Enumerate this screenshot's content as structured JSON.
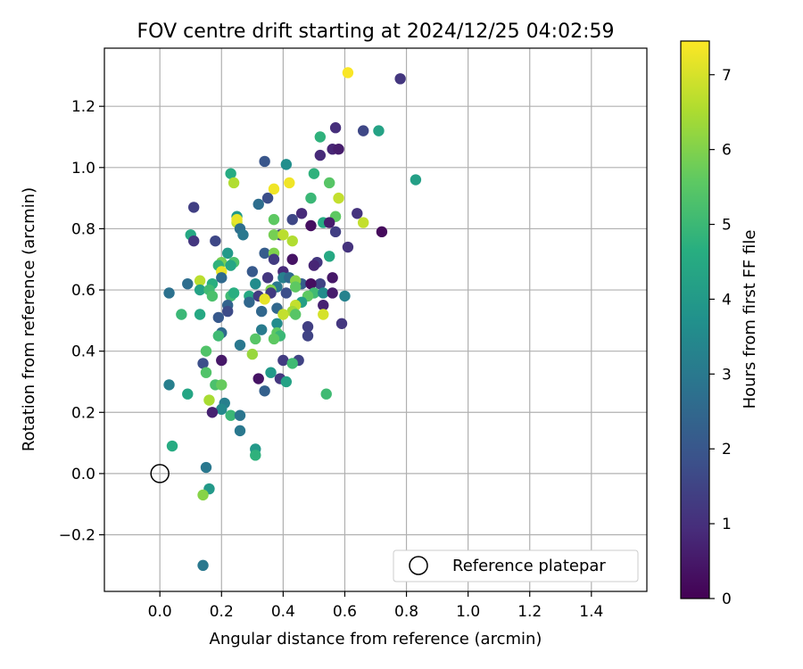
{
  "chart_data": {
    "type": "scatter",
    "title": "FOV centre drift starting at 2024/12/25 04:02:59",
    "xlabel": "Angular distance from reference (arcmin)",
    "ylabel": "Rotation from reference (arcmin)",
    "xlim": [
      -0.18,
      1.58
    ],
    "ylim": [
      -0.385,
      1.39
    ],
    "x_ticks": [
      0.0,
      0.2,
      0.4,
      0.6,
      0.8,
      1.0,
      1.2,
      1.4
    ],
    "y_ticks": [
      -0.2,
      0.0,
      0.2,
      0.4,
      0.6,
      0.8,
      1.0,
      1.2
    ],
    "x_tick_labels": [
      "0.0",
      "0.2",
      "0.4",
      "0.6",
      "0.8",
      "1.0",
      "1.2",
      "1.4"
    ],
    "y_tick_labels": [
      "−0.2",
      "0.0",
      "0.2",
      "0.4",
      "0.6",
      "0.8",
      "1.0",
      "1.2"
    ],
    "grid": true,
    "legend": {
      "position": "lower-right",
      "entries": [
        "Reference platepar"
      ]
    },
    "reference_point": {
      "x": 0.0,
      "y": 0.0,
      "label": "Reference platepar"
    },
    "colorbar": {
      "label": "Hours from first FF file",
      "min": 0,
      "max": 7.45,
      "ticks": [
        0,
        1,
        2,
        3,
        4,
        5,
        6,
        7
      ],
      "tick_labels": [
        "0",
        "1",
        "2",
        "3",
        "4",
        "5",
        "6",
        "7"
      ],
      "colormap": "viridis"
    },
    "points": [
      {
        "x": 0.61,
        "y": 1.31,
        "h": 7.4
      },
      {
        "x": 0.78,
        "y": 1.29,
        "h": 1.2
      },
      {
        "x": 0.71,
        "y": 1.12,
        "h": 4.3
      },
      {
        "x": 0.66,
        "y": 1.12,
        "h": 1.6
      },
      {
        "x": 0.57,
        "y": 1.13,
        "h": 1.0
      },
      {
        "x": 0.52,
        "y": 1.1,
        "h": 4.8
      },
      {
        "x": 0.56,
        "y": 1.06,
        "h": 0.8
      },
      {
        "x": 0.58,
        "y": 1.06,
        "h": 0.6
      },
      {
        "x": 0.52,
        "y": 1.04,
        "h": 0.9
      },
      {
        "x": 0.34,
        "y": 1.02,
        "h": 2.0
      },
      {
        "x": 0.41,
        "y": 1.01,
        "h": 3.7
      },
      {
        "x": 0.83,
        "y": 0.96,
        "h": 4.2
      },
      {
        "x": 0.23,
        "y": 0.98,
        "h": 4.6
      },
      {
        "x": 0.5,
        "y": 0.98,
        "h": 4.8
      },
      {
        "x": 0.55,
        "y": 0.95,
        "h": 5.5
      },
      {
        "x": 0.42,
        "y": 0.95,
        "h": 7.3
      },
      {
        "x": 0.24,
        "y": 0.95,
        "h": 6.6
      },
      {
        "x": 0.37,
        "y": 0.93,
        "h": 7.3
      },
      {
        "x": 0.35,
        "y": 0.9,
        "h": 1.8
      },
      {
        "x": 0.58,
        "y": 0.9,
        "h": 6.8
      },
      {
        "x": 0.49,
        "y": 0.9,
        "h": 5.0
      },
      {
        "x": 0.11,
        "y": 0.87,
        "h": 1.4
      },
      {
        "x": 0.32,
        "y": 0.88,
        "h": 2.7
      },
      {
        "x": 0.46,
        "y": 0.85,
        "h": 0.9
      },
      {
        "x": 0.64,
        "y": 0.85,
        "h": 1.1
      },
      {
        "x": 0.25,
        "y": 0.84,
        "h": 4.0
      },
      {
        "x": 0.57,
        "y": 0.84,
        "h": 5.6
      },
      {
        "x": 0.43,
        "y": 0.83,
        "h": 1.6
      },
      {
        "x": 0.37,
        "y": 0.83,
        "h": 5.6
      },
      {
        "x": 0.25,
        "y": 0.82,
        "h": 6.8
      },
      {
        "x": 0.53,
        "y": 0.82,
        "h": 4.6
      },
      {
        "x": 0.55,
        "y": 0.82,
        "h": 0.6
      },
      {
        "x": 0.66,
        "y": 0.82,
        "h": 6.8
      },
      {
        "x": 0.49,
        "y": 0.81,
        "h": 0.3
      },
      {
        "x": 0.25,
        "y": 0.83,
        "h": 7.2
      },
      {
        "x": 0.26,
        "y": 0.8,
        "h": 2.7
      },
      {
        "x": 0.27,
        "y": 0.78,
        "h": 3.0
      },
      {
        "x": 0.39,
        "y": 0.78,
        "h": 1.4
      },
      {
        "x": 0.57,
        "y": 0.79,
        "h": 1.4
      },
      {
        "x": 0.72,
        "y": 0.79,
        "h": 0.2
      },
      {
        "x": 0.37,
        "y": 0.78,
        "h": 5.9
      },
      {
        "x": 0.4,
        "y": 0.78,
        "h": 6.7
      },
      {
        "x": 0.1,
        "y": 0.78,
        "h": 4.5
      },
      {
        "x": 0.11,
        "y": 0.76,
        "h": 1.2
      },
      {
        "x": 0.18,
        "y": 0.76,
        "h": 1.6
      },
      {
        "x": 0.43,
        "y": 0.76,
        "h": 6.6
      },
      {
        "x": 0.61,
        "y": 0.74,
        "h": 1.1
      },
      {
        "x": 0.34,
        "y": 0.72,
        "h": 2.2
      },
      {
        "x": 0.22,
        "y": 0.72,
        "h": 4.0
      },
      {
        "x": 0.37,
        "y": 0.72,
        "h": 6.0
      },
      {
        "x": 0.55,
        "y": 0.71,
        "h": 4.5
      },
      {
        "x": 0.37,
        "y": 0.7,
        "h": 1.3
      },
      {
        "x": 0.43,
        "y": 0.7,
        "h": 0.4
      },
      {
        "x": 0.51,
        "y": 0.69,
        "h": 1.2
      },
      {
        "x": 0.24,
        "y": 0.69,
        "h": 5.3
      },
      {
        "x": 0.2,
        "y": 0.69,
        "h": 5.9
      },
      {
        "x": 0.5,
        "y": 0.68,
        "h": 0.8
      },
      {
        "x": 0.23,
        "y": 0.68,
        "h": 4.4
      },
      {
        "x": 0.19,
        "y": 0.68,
        "h": 4.8
      },
      {
        "x": 0.2,
        "y": 0.66,
        "h": 7.2
      },
      {
        "x": 0.4,
        "y": 0.66,
        "h": 0.9
      },
      {
        "x": 0.3,
        "y": 0.66,
        "h": 2.1
      },
      {
        "x": 0.2,
        "y": 0.64,
        "h": 2.6
      },
      {
        "x": 0.35,
        "y": 0.64,
        "h": 1.2
      },
      {
        "x": 0.56,
        "y": 0.64,
        "h": 0.5
      },
      {
        "x": 0.4,
        "y": 0.64,
        "h": 3.2
      },
      {
        "x": 0.42,
        "y": 0.64,
        "h": 2.6
      },
      {
        "x": 0.46,
        "y": 0.62,
        "h": 2.2
      },
      {
        "x": 0.52,
        "y": 0.62,
        "h": 1.5
      },
      {
        "x": 0.09,
        "y": 0.62,
        "h": 2.7
      },
      {
        "x": 0.13,
        "y": 0.63,
        "h": 6.7
      },
      {
        "x": 0.17,
        "y": 0.62,
        "h": 4.7
      },
      {
        "x": 0.31,
        "y": 0.62,
        "h": 3.6
      },
      {
        "x": 0.44,
        "y": 0.63,
        "h": 6.1
      },
      {
        "x": 0.49,
        "y": 0.62,
        "h": 0.3
      },
      {
        "x": 0.44,
        "y": 0.61,
        "h": 5.6
      },
      {
        "x": 0.38,
        "y": 0.61,
        "h": 3.0
      },
      {
        "x": 0.13,
        "y": 0.6,
        "h": 4.3
      },
      {
        "x": 0.16,
        "y": 0.6,
        "h": 5.1
      },
      {
        "x": 0.36,
        "y": 0.6,
        "h": 6.0
      },
      {
        "x": 0.41,
        "y": 0.59,
        "h": 1.8
      },
      {
        "x": 0.5,
        "y": 0.59,
        "h": 5.1
      },
      {
        "x": 0.53,
        "y": 0.59,
        "h": 3.6
      },
      {
        "x": 0.56,
        "y": 0.59,
        "h": 0.6
      },
      {
        "x": 0.6,
        "y": 0.58,
        "h": 3.3
      },
      {
        "x": 0.03,
        "y": 0.59,
        "h": 2.8
      },
      {
        "x": 0.23,
        "y": 0.58,
        "h": 5.1
      },
      {
        "x": 0.24,
        "y": 0.59,
        "h": 4.7
      },
      {
        "x": 0.29,
        "y": 0.58,
        "h": 4.5
      },
      {
        "x": 0.17,
        "y": 0.58,
        "h": 5.3
      },
      {
        "x": 0.32,
        "y": 0.58,
        "h": 1.3
      },
      {
        "x": 0.36,
        "y": 0.59,
        "h": 1.3
      },
      {
        "x": 0.48,
        "y": 0.58,
        "h": 5.6
      },
      {
        "x": 0.46,
        "y": 0.56,
        "h": 4.2
      },
      {
        "x": 0.22,
        "y": 0.55,
        "h": 2.4
      },
      {
        "x": 0.34,
        "y": 0.57,
        "h": 7.2
      },
      {
        "x": 0.29,
        "y": 0.56,
        "h": 2.5
      },
      {
        "x": 0.44,
        "y": 0.55,
        "h": 6.8
      },
      {
        "x": 0.53,
        "y": 0.55,
        "h": 0.7
      },
      {
        "x": 0.38,
        "y": 0.54,
        "h": 2.5
      },
      {
        "x": 0.22,
        "y": 0.53,
        "h": 1.7
      },
      {
        "x": 0.33,
        "y": 0.53,
        "h": 2.5
      },
      {
        "x": 0.43,
        "y": 0.53,
        "h": 6.4
      },
      {
        "x": 0.44,
        "y": 0.52,
        "h": 5.5
      },
      {
        "x": 0.4,
        "y": 0.52,
        "h": 6.8
      },
      {
        "x": 0.53,
        "y": 0.52,
        "h": 7.0
      },
      {
        "x": 0.07,
        "y": 0.52,
        "h": 5.0
      },
      {
        "x": 0.13,
        "y": 0.52,
        "h": 4.5
      },
      {
        "x": 0.19,
        "y": 0.51,
        "h": 2.1
      },
      {
        "x": 0.38,
        "y": 0.49,
        "h": 3.6
      },
      {
        "x": 0.59,
        "y": 0.49,
        "h": 1.2
      },
      {
        "x": 0.48,
        "y": 0.48,
        "h": 1.4
      },
      {
        "x": 0.2,
        "y": 0.46,
        "h": 2.6
      },
      {
        "x": 0.33,
        "y": 0.47,
        "h": 3.1
      },
      {
        "x": 0.38,
        "y": 0.46,
        "h": 5.6
      },
      {
        "x": 0.39,
        "y": 0.45,
        "h": 5.0
      },
      {
        "x": 0.19,
        "y": 0.45,
        "h": 5.1
      },
      {
        "x": 0.31,
        "y": 0.44,
        "h": 5.5
      },
      {
        "x": 0.48,
        "y": 0.45,
        "h": 1.5
      },
      {
        "x": 0.37,
        "y": 0.44,
        "h": 5.6
      },
      {
        "x": 0.26,
        "y": 0.42,
        "h": 3.0
      },
      {
        "x": 0.15,
        "y": 0.4,
        "h": 5.4
      },
      {
        "x": 0.3,
        "y": 0.39,
        "h": 6.3
      },
      {
        "x": 0.2,
        "y": 0.37,
        "h": 0.5
      },
      {
        "x": 0.4,
        "y": 0.37,
        "h": 1.3
      },
      {
        "x": 0.45,
        "y": 0.37,
        "h": 1.5
      },
      {
        "x": 0.14,
        "y": 0.36,
        "h": 1.8
      },
      {
        "x": 0.43,
        "y": 0.36,
        "h": 5.1
      },
      {
        "x": 0.36,
        "y": 0.33,
        "h": 4.0
      },
      {
        "x": 0.15,
        "y": 0.33,
        "h": 5.4
      },
      {
        "x": 0.32,
        "y": 0.31,
        "h": 0.4
      },
      {
        "x": 0.39,
        "y": 0.31,
        "h": 1.2
      },
      {
        "x": 0.41,
        "y": 0.3,
        "h": 4.3
      },
      {
        "x": 0.18,
        "y": 0.29,
        "h": 5.3
      },
      {
        "x": 0.2,
        "y": 0.29,
        "h": 5.7
      },
      {
        "x": 0.03,
        "y": 0.29,
        "h": 3.2
      },
      {
        "x": 0.34,
        "y": 0.27,
        "h": 2.3
      },
      {
        "x": 0.09,
        "y": 0.26,
        "h": 4.4
      },
      {
        "x": 0.54,
        "y": 0.26,
        "h": 5.1
      },
      {
        "x": 0.16,
        "y": 0.24,
        "h": 6.5
      },
      {
        "x": 0.21,
        "y": 0.23,
        "h": 3.2
      },
      {
        "x": 0.2,
        "y": 0.21,
        "h": 3.5
      },
      {
        "x": 0.17,
        "y": 0.2,
        "h": 0.7
      },
      {
        "x": 0.23,
        "y": 0.19,
        "h": 5.0
      },
      {
        "x": 0.26,
        "y": 0.19,
        "h": 2.9
      },
      {
        "x": 0.26,
        "y": 0.14,
        "h": 3.0
      },
      {
        "x": 0.04,
        "y": 0.09,
        "h": 4.6
      },
      {
        "x": 0.31,
        "y": 0.08,
        "h": 4.0
      },
      {
        "x": 0.31,
        "y": 0.06,
        "h": 4.8
      },
      {
        "x": 0.15,
        "y": 0.02,
        "h": 3.0
      },
      {
        "x": 0.16,
        "y": -0.05,
        "h": 4.0
      },
      {
        "x": 0.14,
        "y": -0.07,
        "h": 6.1
      },
      {
        "x": 0.14,
        "y": -0.3,
        "h": 3.0
      }
    ]
  }
}
